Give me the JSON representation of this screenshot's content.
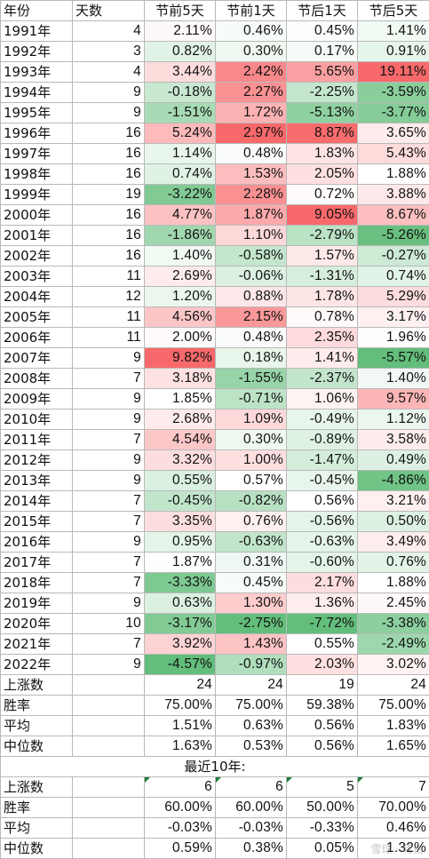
{
  "headers": [
    "年份",
    "天数",
    "节前5天",
    "节前1天",
    "节后1天",
    "节后5天"
  ],
  "rows": [
    {
      "year": "1991年",
      "days": "4",
      "b5": "2.11%",
      "b1": "0.46%",
      "a1": "0.45%",
      "a5": "1.41%"
    },
    {
      "year": "1992年",
      "days": "3",
      "b5": "0.82%",
      "b1": "0.30%",
      "a1": "0.17%",
      "a5": "0.91%"
    },
    {
      "year": "1993年",
      "days": "4",
      "b5": "3.44%",
      "b1": "2.42%",
      "a1": "5.65%",
      "a5": "19.11%"
    },
    {
      "year": "1994年",
      "days": "9",
      "b5": "-0.18%",
      "b1": "2.27%",
      "a1": "-2.25%",
      "a5": "-3.59%"
    },
    {
      "year": "1995年",
      "days": "9",
      "b5": "-1.51%",
      "b1": "1.72%",
      "a1": "-5.13%",
      "a5": "-3.77%"
    },
    {
      "year": "1996年",
      "days": "16",
      "b5": "5.24%",
      "b1": "2.97%",
      "a1": "8.87%",
      "a5": "3.65%"
    },
    {
      "year": "1997年",
      "days": "16",
      "b5": "1.14%",
      "b1": "0.48%",
      "a1": "1.83%",
      "a5": "5.43%"
    },
    {
      "year": "1998年",
      "days": "16",
      "b5": "0.74%",
      "b1": "1.53%",
      "a1": "2.05%",
      "a5": "1.88%"
    },
    {
      "year": "1999年",
      "days": "19",
      "b5": "-3.22%",
      "b1": "2.28%",
      "a1": "0.72%",
      "a5": "3.88%"
    },
    {
      "year": "2000年",
      "days": "16",
      "b5": "4.77%",
      "b1": "1.87%",
      "a1": "9.05%",
      "a5": "8.67%"
    },
    {
      "year": "2001年",
      "days": "16",
      "b5": "-1.86%",
      "b1": "1.10%",
      "a1": "-2.79%",
      "a5": "-5.26%"
    },
    {
      "year": "2002年",
      "days": "16",
      "b5": "1.40%",
      "b1": "-0.58%",
      "a1": "1.57%",
      "a5": "-0.27%"
    },
    {
      "year": "2003年",
      "days": "11",
      "b5": "2.69%",
      "b1": "-0.06%",
      "a1": "-1.31%",
      "a5": "0.74%"
    },
    {
      "year": "2004年",
      "days": "12",
      "b5": "1.20%",
      "b1": "0.88%",
      "a1": "1.78%",
      "a5": "5.29%"
    },
    {
      "year": "2005年",
      "days": "11",
      "b5": "4.56%",
      "b1": "2.15%",
      "a1": "0.78%",
      "a5": "3.17%"
    },
    {
      "year": "2006年",
      "days": "11",
      "b5": "2.00%",
      "b1": "0.48%",
      "a1": "2.35%",
      "a5": "1.96%"
    },
    {
      "year": "2007年",
      "days": "9",
      "b5": "9.82%",
      "b1": "0.18%",
      "a1": "1.41%",
      "a5": "-5.57%"
    },
    {
      "year": "2008年",
      "days": "7",
      "b5": "3.18%",
      "b1": "-1.55%",
      "a1": "-2.37%",
      "a5": "1.40%"
    },
    {
      "year": "2009年",
      "days": "9",
      "b5": "1.85%",
      "b1": "-0.71%",
      "a1": "1.06%",
      "a5": "9.57%"
    },
    {
      "year": "2010年",
      "days": "9",
      "b5": "2.68%",
      "b1": "1.09%",
      "a1": "-0.49%",
      "a5": "1.12%"
    },
    {
      "year": "2011年",
      "days": "7",
      "b5": "4.54%",
      "b1": "0.30%",
      "a1": "-0.89%",
      "a5": "3.58%"
    },
    {
      "year": "2012年",
      "days": "9",
      "b5": "3.32%",
      "b1": "1.00%",
      "a1": "-1.47%",
      "a5": "0.49%"
    },
    {
      "year": "2013年",
      "days": "9",
      "b5": "0.55%",
      "b1": "0.57%",
      "a1": "-0.45%",
      "a5": "-4.86%"
    },
    {
      "year": "2014年",
      "days": "7",
      "b5": "-0.45%",
      "b1": "-0.82%",
      "a1": "0.56%",
      "a5": "3.21%"
    },
    {
      "year": "2015年",
      "days": "7",
      "b5": "3.35%",
      "b1": "0.76%",
      "a1": "-0.56%",
      "a5": "0.50%"
    },
    {
      "year": "2016年",
      "days": "9",
      "b5": "0.95%",
      "b1": "-0.63%",
      "a1": "-0.63%",
      "a5": "3.49%"
    },
    {
      "year": "2017年",
      "days": "7",
      "b5": "1.87%",
      "b1": "0.31%",
      "a1": "-0.60%",
      "a5": "0.76%"
    },
    {
      "year": "2018年",
      "days": "7",
      "b5": "-3.33%",
      "b1": "0.45%",
      "a1": "2.17%",
      "a5": "1.88%"
    },
    {
      "year": "2019年",
      "days": "9",
      "b5": "0.63%",
      "b1": "1.30%",
      "a1": "1.36%",
      "a5": "2.45%"
    },
    {
      "year": "2020年",
      "days": "10",
      "b5": "-3.17%",
      "b1": "-2.75%",
      "a1": "-7.72%",
      "a5": "-3.38%"
    },
    {
      "year": "2021年",
      "days": "7",
      "b5": "3.92%",
      "b1": "1.43%",
      "a1": "0.55%",
      "a5": "-2.49%"
    },
    {
      "year": "2022年",
      "days": "9",
      "b5": "-4.57%",
      "b1": "-0.97%",
      "a1": "2.03%",
      "a5": "3.02%"
    }
  ],
  "summary": [
    {
      "label": "上涨数",
      "b5": "24",
      "b1": "24",
      "a1": "19",
      "a5": "24"
    },
    {
      "label": "胜率",
      "b5": "75.00%",
      "b1": "75.00%",
      "a1": "59.38%",
      "a5": "75.00%"
    },
    {
      "label": "平均",
      "b5": "1.51%",
      "b1": "0.63%",
      "a1": "0.56%",
      "a5": "1.83%"
    },
    {
      "label": "中位数",
      "b5": "1.63%",
      "b1": "0.53%",
      "a1": "0.56%",
      "a5": "1.65%"
    }
  ],
  "recent_title": "最近10年:",
  "recent": [
    {
      "label": "上涨数",
      "b5": "6",
      "b1": "6",
      "a1": "5",
      "a5": "7"
    },
    {
      "label": "胜率",
      "b5": "60.00%",
      "b1": "60.00%",
      "a1": "50.00%",
      "a5": "70.00%"
    },
    {
      "label": "平均",
      "b5": "-0.03%",
      "b1": "-0.03%",
      "a1": "-0.33%",
      "a5": "0.46%"
    },
    {
      "label": "中位数",
      "b5": "0.59%",
      "b1": "0.38%",
      "a1": "0.05%",
      "a5": "1.32%"
    }
  ],
  "colors": {
    "positive_max": "#f8696b",
    "negative_max": "#63be7b",
    "neutral": "#ffffff",
    "grid": "#b9b9b9",
    "flag": "#1f7a3a"
  },
  "watermark": "雪球 · 蒋白"
}
